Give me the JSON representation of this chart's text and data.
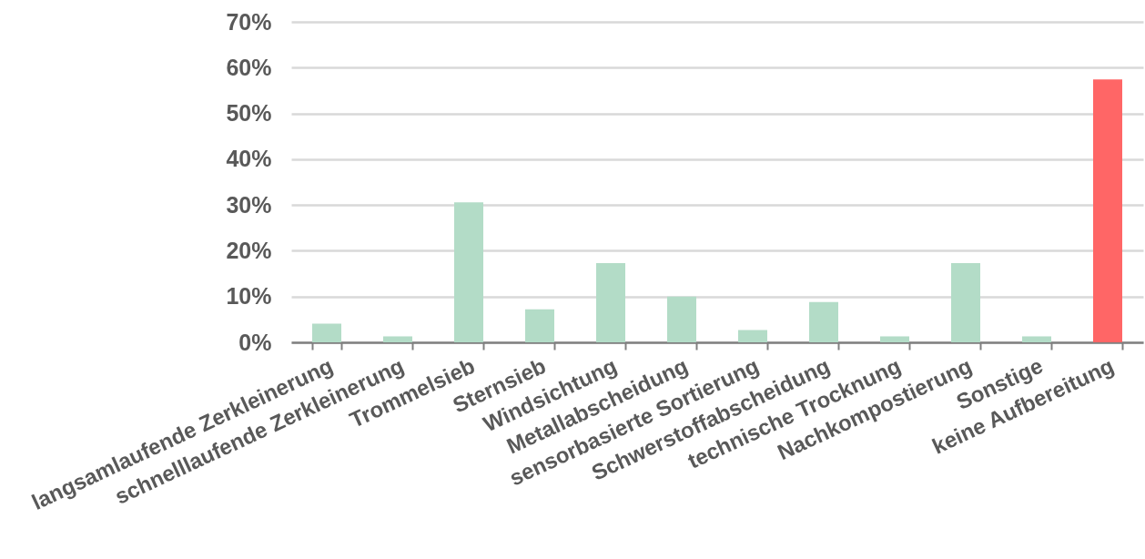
{
  "chart_data": {
    "type": "bar",
    "categories": [
      "langsamlaufende Zerkleinerung",
      "schnelllaufende Zerkleinerung",
      "Trommelsieb",
      "Sternsieb",
      "Windsichtung",
      "Metallabscheidung",
      "sensorbasierte Sortierung",
      "Schwerstoffabscheidung",
      "technische Trocknung",
      "Nachkompostierung",
      "Sonstige",
      "keine Aufbereitung"
    ],
    "values": [
      4.1,
      1.3,
      30.6,
      7.2,
      17.3,
      10.0,
      2.7,
      8.8,
      1.3,
      17.3,
      1.3,
      57.4
    ],
    "colors": [
      "#b3dcc7",
      "#b3dcc7",
      "#b3dcc7",
      "#b3dcc7",
      "#b3dcc7",
      "#b3dcc7",
      "#b3dcc7",
      "#b3dcc7",
      "#b3dcc7",
      "#b3dcc7",
      "#b3dcc7",
      "#ff6666"
    ],
    "ylim": [
      0,
      70
    ],
    "yticks": [
      {
        "value": 0,
        "label": "0%"
      },
      {
        "value": 10,
        "label": "10%"
      },
      {
        "value": 20,
        "label": "20%"
      },
      {
        "value": 30,
        "label": "30%"
      },
      {
        "value": 40,
        "label": "40%"
      },
      {
        "value": 50,
        "label": "50%"
      },
      {
        "value": 60,
        "label": "60%"
      },
      {
        "value": 70,
        "label": "70%"
      }
    ],
    "grid": "y"
  }
}
